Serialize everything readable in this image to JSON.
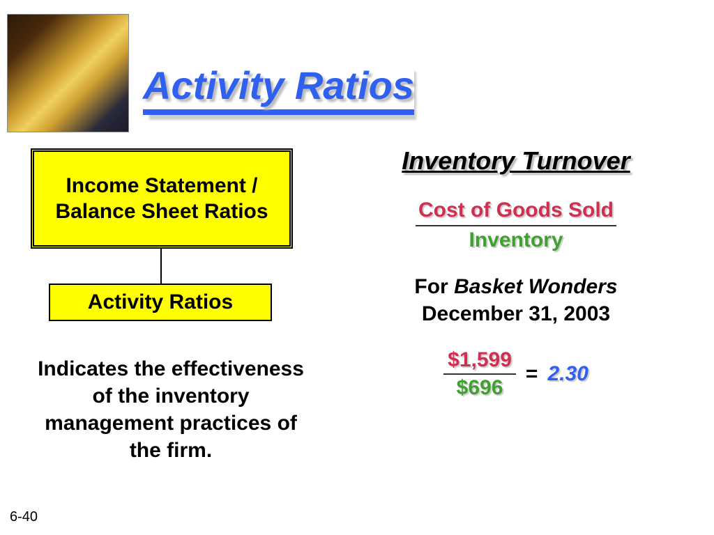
{
  "title": "Activity Ratios",
  "title_color": "#3060f0",
  "title_fontsize": 56,
  "box1": {
    "text": "Income Statement / Balance Sheet Ratios",
    "bg_color": "#ffff00",
    "border_style": "double",
    "fontsize": 30
  },
  "box2": {
    "text": "Activity Ratios",
    "bg_color": "#ffff00",
    "fontsize": 30
  },
  "description": "Indicates the effectiveness of the inventory management practices of the firm.",
  "subheading": "Inventory Turnover",
  "formula": {
    "numerator": "Cost of Goods Sold",
    "numerator_color": "#d03050",
    "denominator": "Inventory",
    "denominator_color": "#40a030"
  },
  "context": {
    "for_word": "For",
    "company": "Basket Wonders",
    "date": "December 31, 2003"
  },
  "calculation": {
    "numerator": "$1,599",
    "numerator_color": "#d03050",
    "denominator": "$696",
    "denominator_color": "#40a030",
    "equals": "=",
    "result": "2.30",
    "result_color": "#3060f0"
  },
  "slide_number": "6-40",
  "background_color": "#ffffff"
}
